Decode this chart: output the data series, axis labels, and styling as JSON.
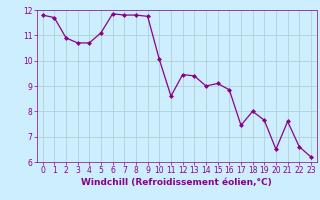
{
  "x": [
    0,
    1,
    2,
    3,
    4,
    5,
    6,
    7,
    8,
    9,
    10,
    11,
    12,
    13,
    14,
    15,
    16,
    17,
    18,
    19,
    20,
    21,
    22,
    23
  ],
  "y": [
    11.8,
    11.7,
    10.9,
    10.7,
    10.7,
    11.1,
    11.85,
    11.8,
    11.8,
    11.75,
    10.05,
    8.6,
    9.45,
    9.4,
    9.0,
    9.1,
    8.85,
    7.45,
    8.0,
    7.65,
    6.5,
    7.6,
    6.6,
    6.2
  ],
  "line_color": "#8b008b",
  "marker": "D",
  "markersize": 2.0,
  "linewidth": 0.9,
  "xlabel": "Windchill (Refroidissement éolien,°C)",
  "xlabel_fontsize": 6.5,
  "ylim": [
    6,
    12
  ],
  "xlim": [
    -0.5,
    23.5
  ],
  "yticks": [
    6,
    7,
    8,
    9,
    10,
    11,
    12
  ],
  "xticks": [
    0,
    1,
    2,
    3,
    4,
    5,
    6,
    7,
    8,
    9,
    10,
    11,
    12,
    13,
    14,
    15,
    16,
    17,
    18,
    19,
    20,
    21,
    22,
    23
  ],
  "tick_fontsize": 5.5,
  "background_color": "#cceeff",
  "grid_color": "#aacccc",
  "line_and_text_color": "#8b008b"
}
